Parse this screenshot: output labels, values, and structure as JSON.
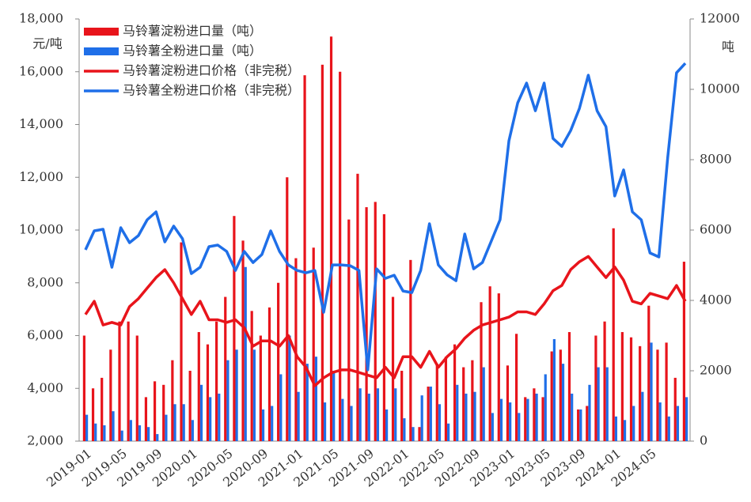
{
  "chart_data": {
    "type": "combo",
    "y_label": "元/吨",
    "y2_label": "吨",
    "categories": [
      "2019-01",
      null,
      null,
      null,
      "2019-05",
      null,
      null,
      null,
      "2019-09",
      null,
      null,
      null,
      "2020-01",
      null,
      null,
      null,
      "2020-05",
      null,
      null,
      null,
      "2020-09",
      null,
      null,
      null,
      "2021-01",
      null,
      null,
      null,
      "2021-05",
      null,
      null,
      null,
      "2021-09",
      null,
      null,
      null,
      "2022-01",
      null,
      null,
      null,
      "2022-05",
      null,
      null,
      null,
      "2022-09",
      null,
      null,
      null,
      "2023-01",
      null,
      null,
      null,
      "2023-05",
      null,
      null,
      null,
      "2023-09",
      null,
      null,
      null,
      "2024-01",
      null,
      null,
      null,
      "2024-05",
      null,
      null,
      null,
      null
    ],
    "ylim": [
      2000,
      18000
    ],
    "yticks": [
      {
        "value": 2000,
        "label": "2,000"
      },
      {
        "value": 4000,
        "label": "4,000"
      },
      {
        "value": 6000,
        "label": "6,000"
      },
      {
        "value": 8000,
        "label": "8,000"
      },
      {
        "value": 10000,
        "label": "10,000"
      },
      {
        "value": 12000,
        "label": "12,000"
      },
      {
        "value": 14000,
        "label": "14,000"
      },
      {
        "value": 16000,
        "label": "16,000"
      },
      {
        "value": 18000,
        "label": "18,000"
      }
    ],
    "y2lim": [
      0,
      12000
    ],
    "y2ticks": [
      0,
      2000,
      4000,
      6000,
      8000,
      10000,
      12000
    ],
    "legend": "upper left",
    "series": [
      {
        "name": "马铃薯淀粉进口量（吨）",
        "type": "bar",
        "axis": "y2",
        "color": "#e8141b",
        "values": [
          3000,
          1500,
          1800,
          2600,
          3400,
          3400,
          3000,
          1250,
          1700,
          1600,
          2300,
          5650,
          2000,
          3100,
          2750,
          3400,
          4100,
          6400,
          5700,
          3700,
          3000,
          3800,
          4500,
          7500,
          5200,
          10400,
          5500,
          10700,
          11500,
          10500,
          6300,
          7600,
          6650,
          6800,
          6450,
          4100,
          2000,
          5150,
          400,
          1550,
          2200,
          2400,
          2750,
          2100,
          2300,
          3950,
          4400,
          4200,
          2150,
          3050,
          1250,
          1500,
          1250,
          2550,
          2600,
          3100,
          900,
          1000,
          3000,
          3400,
          6050,
          3100,
          2950,
          2700,
          3850,
          2600,
          2800,
          1800,
          5100
        ]
      },
      {
        "name": "马铃薯全粉进口量（吨）",
        "type": "bar",
        "axis": "y2",
        "color": "#1f6fe8",
        "values": [
          750,
          500,
          450,
          850,
          300,
          600,
          450,
          400,
          200,
          750,
          1050,
          1050,
          600,
          1600,
          1250,
          1350,
          2300,
          2600,
          4950,
          2600,
          900,
          1000,
          1900,
          3000,
          1400,
          2200,
          2400,
          1100,
          2000,
          1200,
          1000,
          1500,
          1350,
          1500,
          900,
          1500,
          650,
          400,
          1300,
          1550,
          1050,
          500,
          1600,
          1350,
          1400,
          2100,
          800,
          1200,
          1100,
          800,
          1200,
          1350,
          1900,
          2900,
          2200,
          1350,
          900,
          1600,
          2100,
          2100,
          700,
          600,
          1000,
          1400,
          2800,
          1100,
          700,
          1000,
          1250
        ]
      },
      {
        "name": "马铃薯淀粉进口价格（非完税）",
        "type": "line",
        "color": "#e8141b",
        "values": [
          6800,
          7300,
          6400,
          6500,
          6400,
          7100,
          7400,
          7800,
          8200,
          8500,
          8000,
          7400,
          6800,
          7300,
          6600,
          6600,
          6500,
          6600,
          6300,
          5600,
          5800,
          5800,
          5600,
          6000,
          5200,
          4800,
          4100,
          4400,
          4600,
          4700,
          4700,
          4600,
          4500,
          4400,
          4800,
          4400,
          5200,
          5200,
          4800,
          5400,
          4800,
          5200,
          5500,
          5900,
          6200,
          6400,
          6500,
          6600,
          6700,
          6900,
          6900,
          6800,
          7200,
          7700,
          7900,
          8500,
          8800,
          9000,
          8600,
          8200,
          8600,
          8100,
          7300,
          7200,
          7600,
          7500,
          7400,
          7900,
          7300
        ]
      },
      {
        "name": "马铃薯全粉进口价格（非完税）",
        "type": "line",
        "color": "#1f6fe8",
        "values": [
          9250,
          9970,
          10030,
          8590,
          10090,
          9520,
          9790,
          10390,
          10690,
          9550,
          10150,
          9670,
          8350,
          8590,
          9370,
          9430,
          9190,
          8470,
          9190,
          8770,
          9070,
          9970,
          9190,
          8680,
          8470,
          8380,
          8470,
          6880,
          8680,
          8680,
          8650,
          8470,
          4700,
          8530,
          8170,
          8290,
          7690,
          7630,
          8470,
          10240,
          8680,
          8300,
          8080,
          9850,
          8530,
          8770,
          9580,
          10390,
          13380,
          14820,
          15570,
          14520,
          15570,
          13470,
          13170,
          13770,
          14610,
          15870,
          14520,
          13920,
          11290,
          12280,
          10690,
          10390,
          9130,
          8980,
          12730,
          15960,
          16320
        ]
      }
    ]
  }
}
